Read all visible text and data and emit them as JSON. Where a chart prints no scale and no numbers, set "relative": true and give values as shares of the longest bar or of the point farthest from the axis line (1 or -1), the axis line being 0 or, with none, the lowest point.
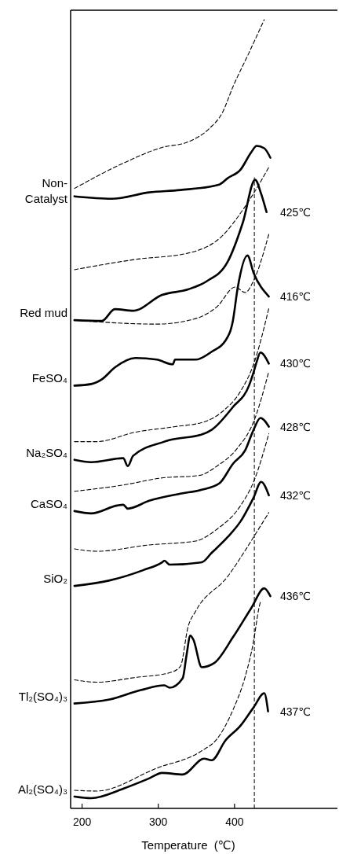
{
  "chart_data": {
    "type": "line",
    "relative": true,
    "xlabel": "Temperature  (℃)",
    "xlim": [
      185,
      535
    ],
    "xticks": [
      200,
      300,
      400
    ],
    "tick_labels": "x",
    "series": [
      {
        "color": "#000000",
        "line_style": "dashed",
        "x": [
          190,
          254,
          305,
          339,
          367,
          384,
          398,
          419,
          439
        ],
        "values": [
          0.786,
          0.818,
          0.838,
          0.845,
          0.862,
          0.882,
          0.915,
          0.958,
          1.0
        ]
      },
      {
        "name": "Non-Catalyst",
        "color": "#000000",
        "line_style": "solid",
        "x": [
          190,
          239,
          288,
          329,
          380,
          391,
          408,
          422,
          429,
          439,
          447
        ],
        "values": [
          0.776,
          0.773,
          0.781,
          0.784,
          0.791,
          0.799,
          0.81,
          0.832,
          0.84,
          0.837,
          0.825
        ]
      },
      {
        "color": "#000000",
        "line_style": "dashed",
        "x": [
          190,
          270,
          339,
          384,
          411,
          429,
          445
        ],
        "values": [
          0.683,
          0.696,
          0.704,
          0.726,
          0.759,
          0.786,
          0.813
        ]
      },
      {
        "name": "Red mud",
        "color": "#000000",
        "line_style": "solid",
        "x": [
          190,
          226,
          243,
          267,
          305,
          339,
          363,
          391,
          411,
          427,
          435,
          442
        ],
        "values": [
          0.619,
          0.618,
          0.633,
          0.631,
          0.651,
          0.658,
          0.668,
          0.693,
          0.743,
          0.797,
          0.779,
          0.756
        ]
      },
      {
        "color": "#000000",
        "line_style": "dashed",
        "x": [
          190,
          298,
          349,
          377,
          401,
          414,
          425,
          445
        ],
        "values": [
          0.619,
          0.614,
          0.621,
          0.636,
          0.661,
          0.654,
          0.669,
          0.728
        ]
      },
      {
        "name": "FeSO₄",
        "color": "#000000",
        "line_style": "solid",
        "x": [
          190,
          212,
          226,
          243,
          270,
          298,
          319,
          322,
          349,
          370,
          388,
          398,
          404,
          417,
          425,
          445
        ],
        "values": [
          0.536,
          0.538,
          0.544,
          0.559,
          0.571,
          0.569,
          0.563,
          0.569,
          0.569,
          0.579,
          0.593,
          0.619,
          0.659,
          0.701,
          0.679,
          0.649
        ]
      },
      {
        "color": "#000000",
        "line_style": "dashed",
        "x": [
          190,
          219,
          270,
          322,
          360,
          384,
          408,
          425,
          445
        ],
        "values": [
          0.465,
          0.465,
          0.477,
          0.484,
          0.49,
          0.503,
          0.529,
          0.563,
          0.634
        ]
      },
      {
        "name": "Na₂SO₄",
        "color": "#000000",
        "line_style": "solid",
        "x": [
          190,
          212,
          254,
          260,
          267,
          305,
          315,
          357,
          370,
          398,
          419,
          425,
          429,
          434,
          445
        ],
        "values": [
          0.442,
          0.439,
          0.444,
          0.434,
          0.447,
          0.464,
          0.467,
          0.474,
          0.48,
          0.509,
          0.536,
          0.553,
          0.566,
          0.578,
          0.564
        ]
      },
      {
        "color": "#000000",
        "line_style": "dashed",
        "x": [
          190,
          254,
          305,
          353,
          377,
          404,
          425,
          445
        ],
        "values": [
          0.402,
          0.41,
          0.419,
          0.422,
          0.434,
          0.457,
          0.49,
          0.554
        ]
      },
      {
        "name": "CaSO₄",
        "color": "#000000",
        "line_style": "solid",
        "x": [
          190,
          212,
          246,
          254,
          260,
          288,
          329,
          357,
          380,
          398,
          414,
          425,
          434,
          445
        ],
        "values": [
          0.377,
          0.374,
          0.384,
          0.385,
          0.38,
          0.39,
          0.399,
          0.404,
          0.412,
          0.437,
          0.454,
          0.48,
          0.495,
          0.484
        ]
      },
      {
        "color": "#000000",
        "line_style": "dashed",
        "x": [
          190,
          219,
          288,
          349,
          377,
          408,
          425,
          445
        ],
        "values": [
          0.329,
          0.326,
          0.334,
          0.339,
          0.354,
          0.384,
          0.414,
          0.475
        ]
      },
      {
        "name": "SiO₂",
        "color": "#000000",
        "line_style": "solid",
        "x": [
          190,
          236,
          280,
          305,
          308,
          315,
          357,
          370,
          391,
          408,
          425,
          435,
          445
        ],
        "values": [
          0.282,
          0.289,
          0.302,
          0.312,
          0.314,
          0.309,
          0.312,
          0.324,
          0.344,
          0.364,
          0.394,
          0.414,
          0.397
        ]
      },
      {
        "color": "#000000",
        "line_style": "dashed",
        "x": [
          190,
          219,
          270,
          315,
          329,
          339,
          349,
          391,
          414,
          425,
          445
        ],
        "values": [
          0.163,
          0.16,
          0.166,
          0.172,
          0.18,
          0.23,
          0.25,
          0.294,
          0.327,
          0.344,
          0.375
        ]
      },
      {
        "name": "Tl₂(SO₄)₃",
        "color": "#000000",
        "line_style": "solid",
        "x": [
          190,
          236,
          277,
          308,
          315,
          332,
          337,
          342,
          346,
          357,
          373,
          398,
          422,
          439,
          447
        ],
        "values": [
          0.133,
          0.138,
          0.15,
          0.156,
          0.153,
          0.165,
          0.194,
          0.219,
          0.214,
          0.179,
          0.184,
          0.217,
          0.254,
          0.279,
          0.269
        ]
      },
      {
        "color": "#000000",
        "line_style": "dashed",
        "x": [
          190,
          219,
          298,
          357,
          377,
          398,
          414,
          425,
          432,
          434
        ],
        "values": [
          0.023,
          0.022,
          0.051,
          0.073,
          0.088,
          0.125,
          0.167,
          0.212,
          0.254,
          0.262
        ]
      },
      {
        "name": "Al₂(SO₄)₃",
        "color": "#000000",
        "line_style": "solid",
        "x": [
          190,
          212,
          254,
          288,
          305,
          332,
          360,
          370,
          388,
          408,
          425,
          439,
          444
        ],
        "values": [
          0.015,
          0.013,
          0.025,
          0.038,
          0.045,
          0.043,
          0.063,
          0.061,
          0.086,
          0.105,
          0.128,
          0.146,
          0.123
        ]
      }
    ],
    "ref_lines": [
      {
        "axis": "x",
        "value": 426,
        "color": "#000000",
        "line_style": "dashed"
      }
    ],
    "annotations": [
      "425℃",
      "416℃",
      "430℃",
      "428℃",
      "432℃",
      "436℃",
      "437℃"
    ]
  }
}
